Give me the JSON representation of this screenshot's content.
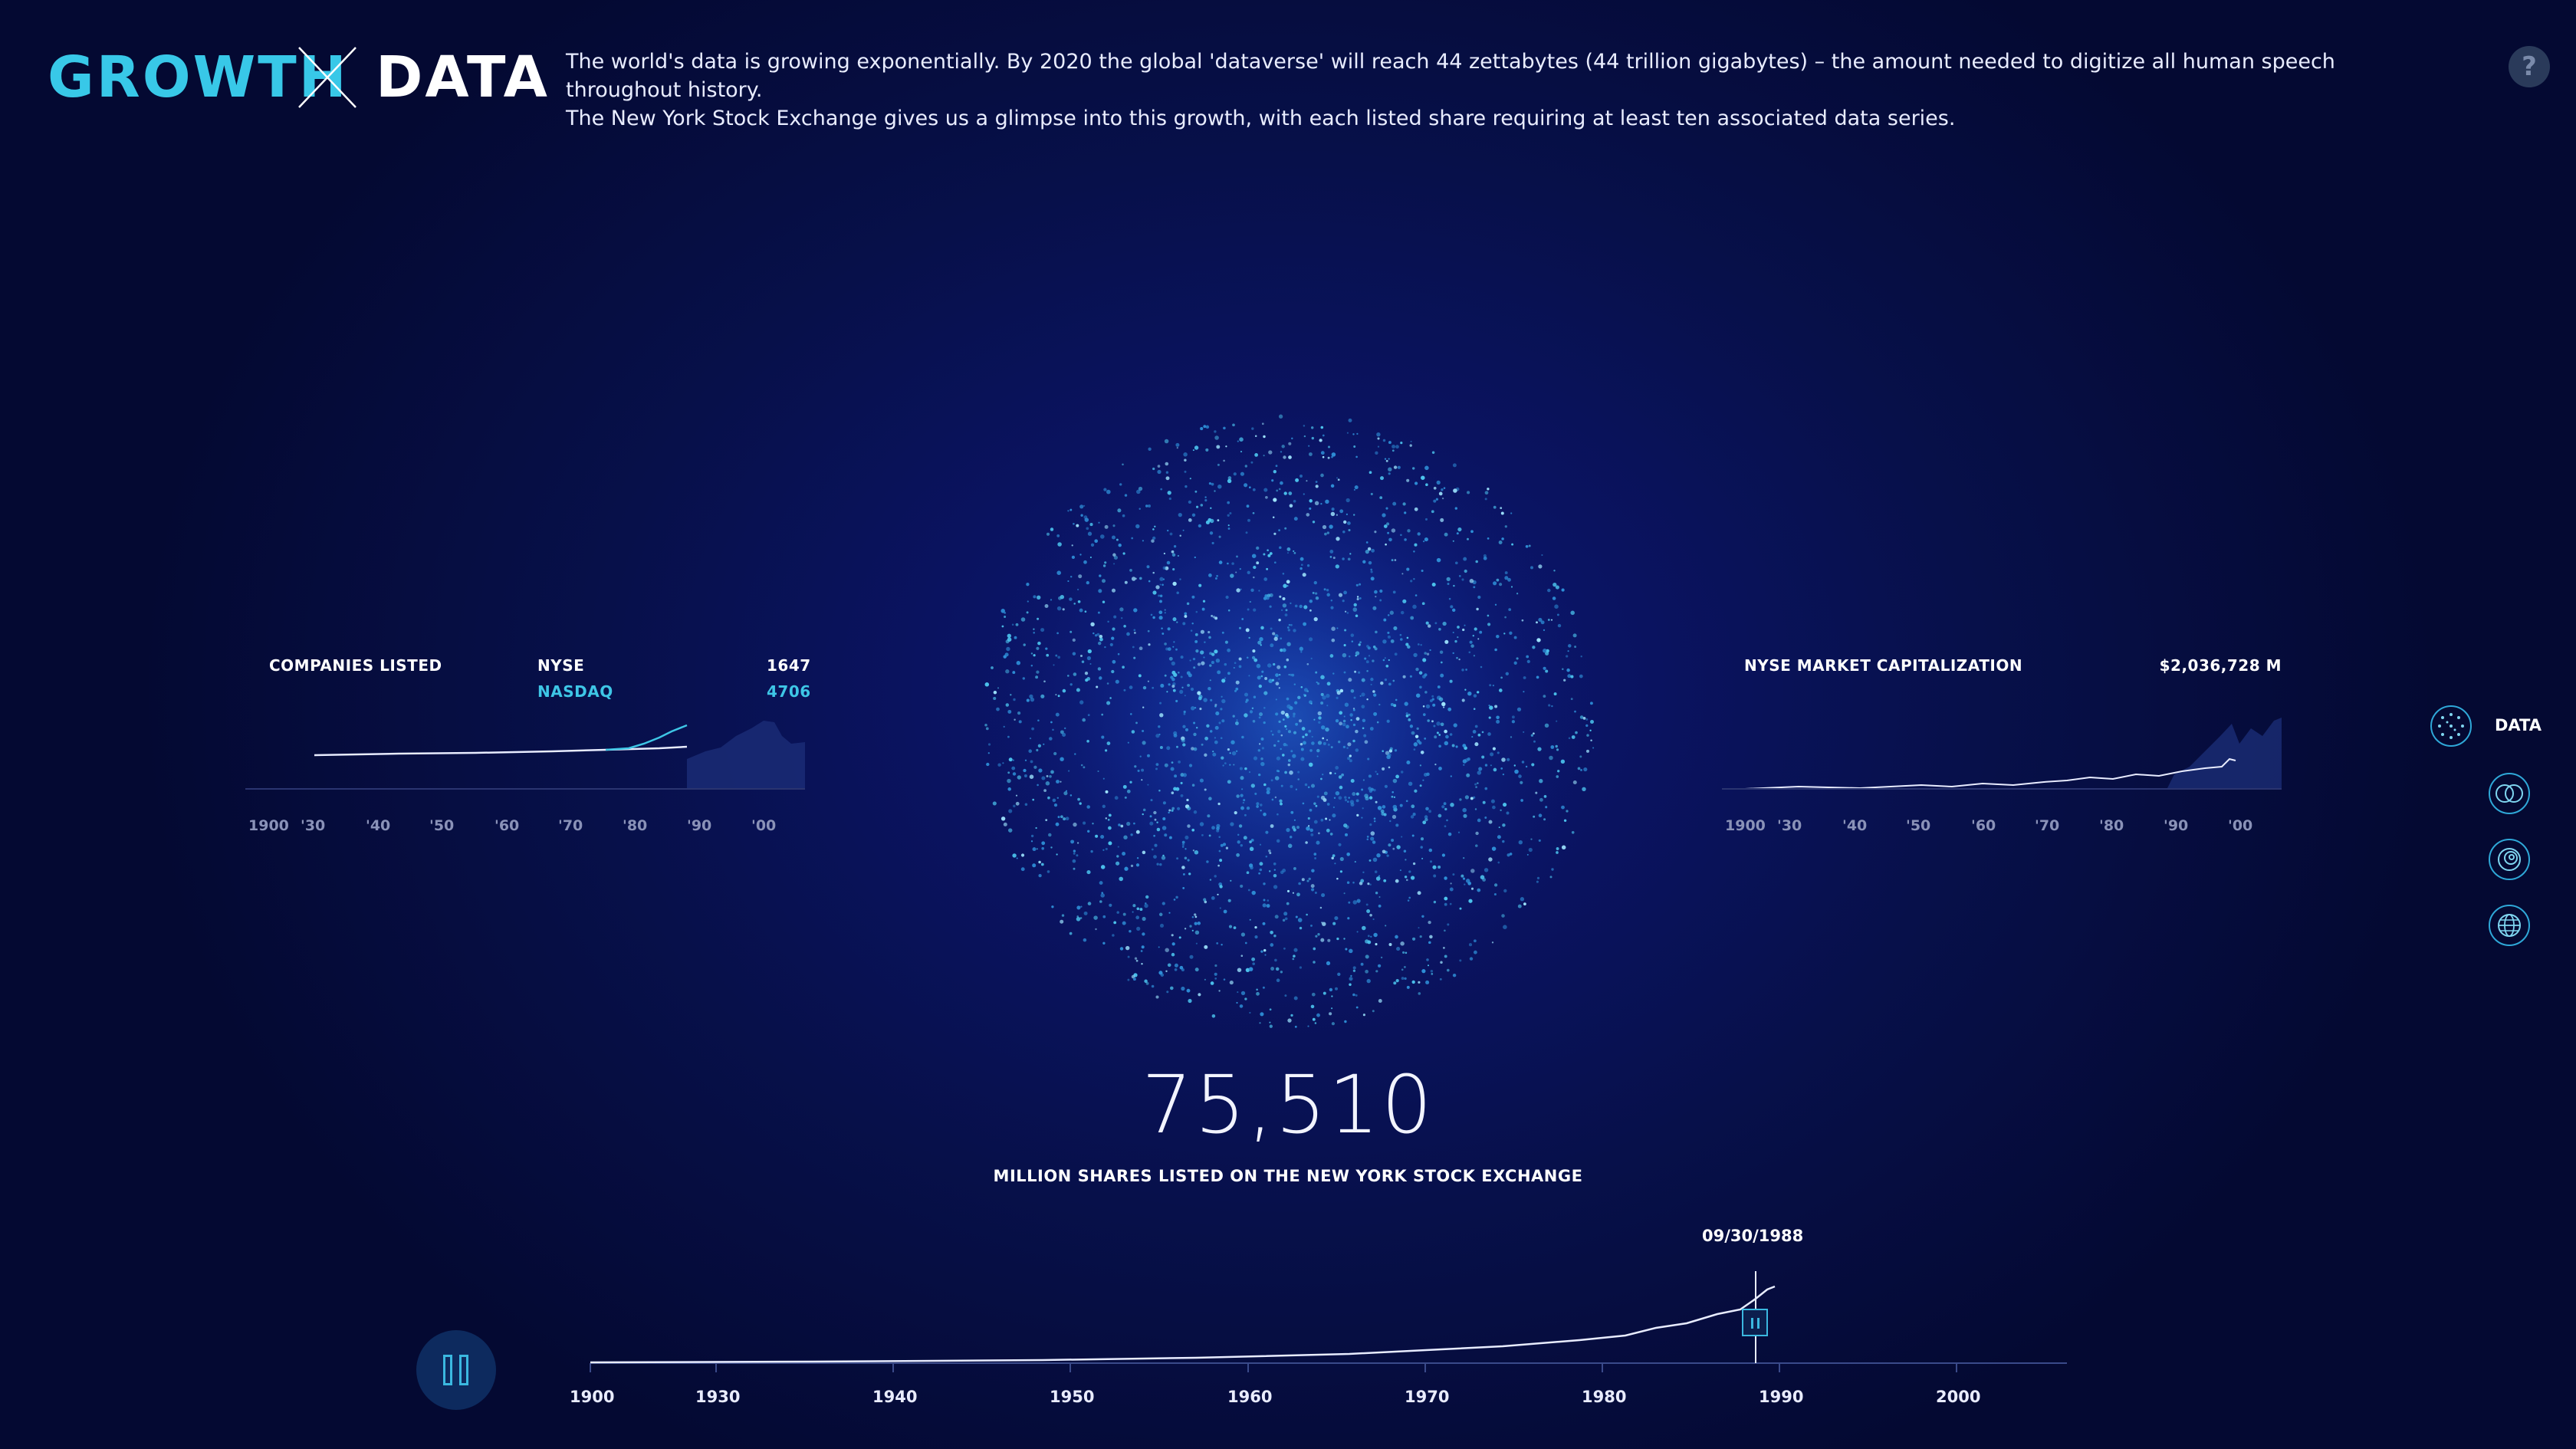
{
  "header": {
    "logo_left": "GROWTH",
    "logo_right": "DATA",
    "intro_line1": "The world's data is growing exponentially. By 2020 the global 'dataverse' will reach 44 zettabytes (44 trillion gigabytes) – the amount needed to digitize all human speech throughout history.",
    "intro_line2": "The New York Stock Exchange gives us a glimpse into this growth, with each listed share requiring at least ten associated data series.",
    "help_label": "?"
  },
  "companies_panel": {
    "title": "COMPANIES LISTED",
    "nyse_label": "NYSE",
    "nyse_value": "1647",
    "nasdaq_label": "NASDAQ",
    "nasdaq_value": "4706",
    "ticks": [
      "1900",
      "'30",
      "'40",
      "'50",
      "'60",
      "'70",
      "'80",
      "'90",
      "'00"
    ]
  },
  "market_cap_panel": {
    "title": "NYSE MARKET CAPITALIZATION",
    "value": "$2,036,728 M",
    "ticks": [
      "1900",
      "'30",
      "'40",
      "'50",
      "'60",
      "'70",
      "'80",
      "'90",
      "'00"
    ]
  },
  "main_stat": {
    "value": "75,510",
    "label": "MILLION SHARES LISTED ON THE NEW YORK STOCK EXCHANGE"
  },
  "timeline": {
    "current_date": "09/30/1988",
    "ticks": [
      "1900",
      "1930",
      "1940",
      "1950",
      "1960",
      "1970",
      "1980",
      "1990",
      "2000"
    ]
  },
  "side_nav": {
    "active_label": "DATA",
    "items": [
      "data-icon",
      "overlap-circles-icon",
      "spiral-icon",
      "globe-icon"
    ]
  },
  "colors": {
    "accent": "#38c8e8",
    "nasdaq": "#3ec6e6",
    "background": "#0a1360"
  }
}
